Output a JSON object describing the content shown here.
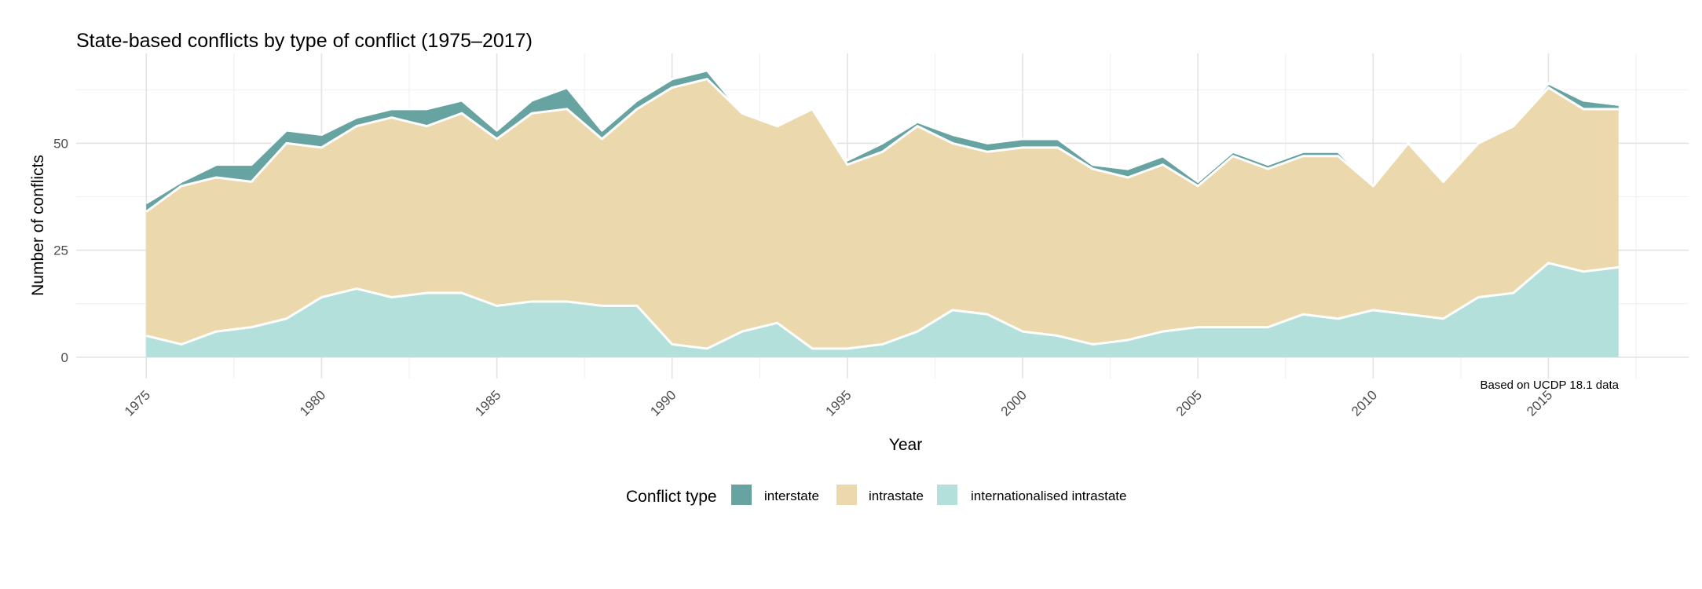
{
  "chart_data": {
    "type": "area",
    "title": "State-based conflicts by type of conflict (1975–2017)",
    "xlabel": "Year",
    "ylabel": "Number of conflicts",
    "caption": "Based on UCDP 18.1 data",
    "xlim": [
      1973,
      2019
    ],
    "ylim": [
      -5,
      71
    ],
    "x_ticks": [
      1975,
      1980,
      1985,
      1990,
      1995,
      2000,
      2005,
      2010,
      2015
    ],
    "y_ticks": [
      0,
      25,
      50
    ],
    "stacked": true,
    "grid": true,
    "legend": {
      "title": "Conflict type",
      "position": "bottom",
      "entries": [
        "interstate",
        "intrastate",
        "internationalised intrastate"
      ]
    },
    "x": [
      1975,
      1976,
      1977,
      1978,
      1979,
      1980,
      1981,
      1982,
      1983,
      1984,
      1985,
      1986,
      1987,
      1988,
      1989,
      1990,
      1991,
      1992,
      1993,
      1994,
      1995,
      1996,
      1997,
      1998,
      1999,
      2000,
      2001,
      2002,
      2003,
      2004,
      2005,
      2006,
      2007,
      2008,
      2009,
      2010,
      2011,
      2012,
      2013,
      2014,
      2015,
      2016,
      2017
    ],
    "series": [
      {
        "name": "internationalised intrastate",
        "color": "#b3e0da",
        "values": [
          5,
          3,
          6,
          7,
          9,
          14,
          16,
          14,
          15,
          15,
          12,
          13,
          13,
          12,
          12,
          3,
          2,
          6,
          8,
          2,
          2,
          3,
          6,
          11,
          10,
          6,
          5,
          3,
          4,
          6,
          7,
          7,
          7,
          10,
          9,
          11,
          10,
          9,
          14,
          15,
          22,
          20,
          21
        ]
      },
      {
        "name": "intrastate",
        "color": "#ebd9ad",
        "values": [
          29,
          37,
          36,
          34,
          41,
          35,
          38,
          42,
          39,
          42,
          39,
          44,
          45,
          39,
          46,
          60,
          63,
          51,
          46,
          56,
          43,
          45,
          48,
          39,
          38,
          43,
          44,
          41,
          38,
          39,
          33,
          40,
          37,
          37,
          38,
          29,
          40,
          32,
          36,
          39,
          41,
          38,
          37
        ]
      },
      {
        "name": "interstate",
        "color": "#66a3a1",
        "values": [
          2,
          1,
          3,
          4,
          3,
          3,
          2,
          2,
          4,
          3,
          2,
          3,
          5,
          2,
          2,
          2,
          2,
          0,
          0,
          0,
          1,
          2,
          1,
          2,
          2,
          2,
          2,
          1,
          2,
          2,
          1,
          1,
          1,
          1,
          1,
          0,
          0,
          0,
          0,
          0,
          1,
          2,
          1
        ]
      }
    ]
  }
}
